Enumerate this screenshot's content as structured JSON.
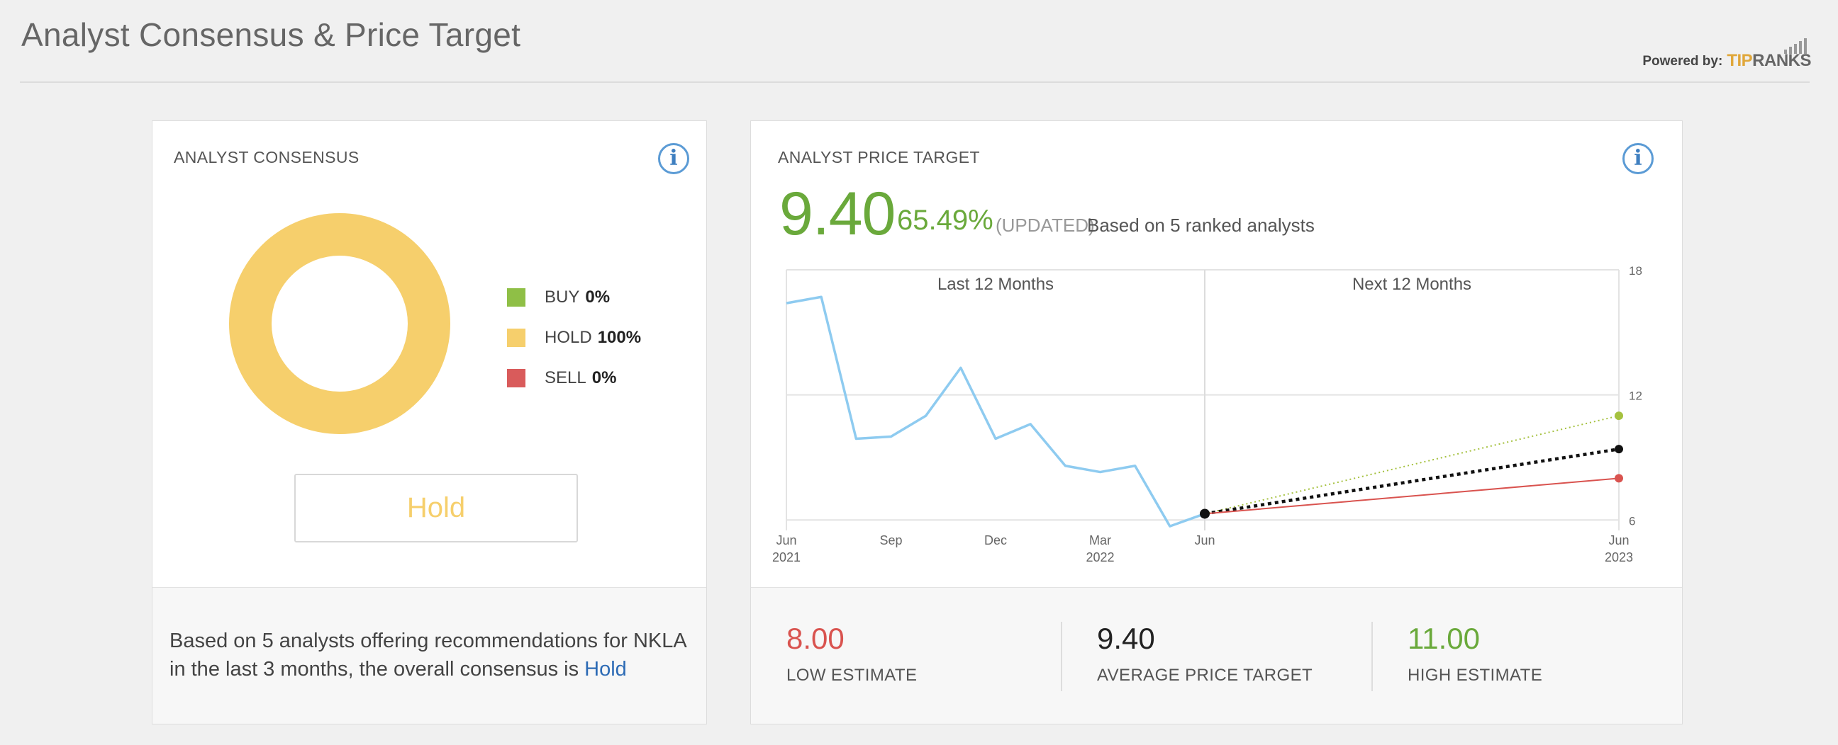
{
  "page": {
    "title": "Analyst Consensus & Price Target",
    "powered_by": "Powered by:",
    "logo_tip": "TIP",
    "logo_ranks": "RANKS"
  },
  "consensus": {
    "label": "ANALYST CONSENSUS",
    "info_icon": "i",
    "legend": [
      {
        "label": "BUY",
        "value": "0%",
        "color": "#8fbf46"
      },
      {
        "label": "HOLD",
        "value": "100%",
        "color": "#f6cf6c"
      },
      {
        "label": "SELL",
        "value": "0%",
        "color": "#d95b5b"
      }
    ],
    "rating": "Hold",
    "summary_prefix": "Based on 5 analysts offering recommendations for NKLA in the last 3 months, the overall consensus is",
    "summary_link": "Hold"
  },
  "price_target": {
    "label": "ANALYST PRICE TARGET",
    "info_icon": "i",
    "price": "9.40",
    "percent": "65.49%",
    "updated": "(UPDATED)",
    "based_on": "Based on 5 ranked analysts",
    "low_value": "8.00",
    "low_label": "LOW ESTIMATE",
    "avg_value": "9.40",
    "avg_label": "AVERAGE PRICE TARGET",
    "high_value": "11.00",
    "high_label": "HIGH ESTIMATE",
    "colors": {
      "low": "#d9534f",
      "avg": "#222222",
      "high": "#6aa93b",
      "history": "#8ecbf0"
    }
  },
  "chart_data": {
    "type": "line",
    "section_labels": [
      "Last 12 Months",
      "Next 12 Months"
    ],
    "ylim": [
      5.5,
      18
    ],
    "y_ticks": [
      6,
      12,
      18
    ],
    "x_ticks": [
      {
        "label": "Jun",
        "sub": "2021",
        "t": 0
      },
      {
        "label": "Sep",
        "sub": "",
        "t": 3
      },
      {
        "label": "Dec",
        "sub": "",
        "t": 6
      },
      {
        "label": "Mar",
        "sub": "2022",
        "t": 9
      },
      {
        "label": "Jun",
        "sub": "",
        "t": 12
      },
      {
        "label": "Jun",
        "sub": "2023",
        "t": 24
      }
    ],
    "history": {
      "name": "Price",
      "points": [
        [
          0,
          16.4
        ],
        [
          1,
          16.7
        ],
        [
          2,
          9.9
        ],
        [
          3,
          10.0
        ],
        [
          4,
          11.0
        ],
        [
          5,
          13.3
        ],
        [
          6,
          9.9
        ],
        [
          7,
          10.6
        ],
        [
          8,
          8.6
        ],
        [
          9,
          8.3
        ],
        [
          10,
          8.6
        ],
        [
          11,
          5.7
        ],
        [
          12,
          6.3
        ]
      ]
    },
    "forecasts": [
      {
        "name": "High",
        "from": [
          12,
          6.3
        ],
        "to": [
          24,
          11.0
        ],
        "color": "#a5c13f",
        "style": "dotted"
      },
      {
        "name": "Average",
        "from": [
          12,
          6.3
        ],
        "to": [
          24,
          9.4
        ],
        "color": "#111111",
        "style": "dashed-bold"
      },
      {
        "name": "Low",
        "from": [
          12,
          6.3
        ],
        "to": [
          24,
          8.0
        ],
        "color": "#d9534f",
        "style": "solid"
      }
    ]
  }
}
